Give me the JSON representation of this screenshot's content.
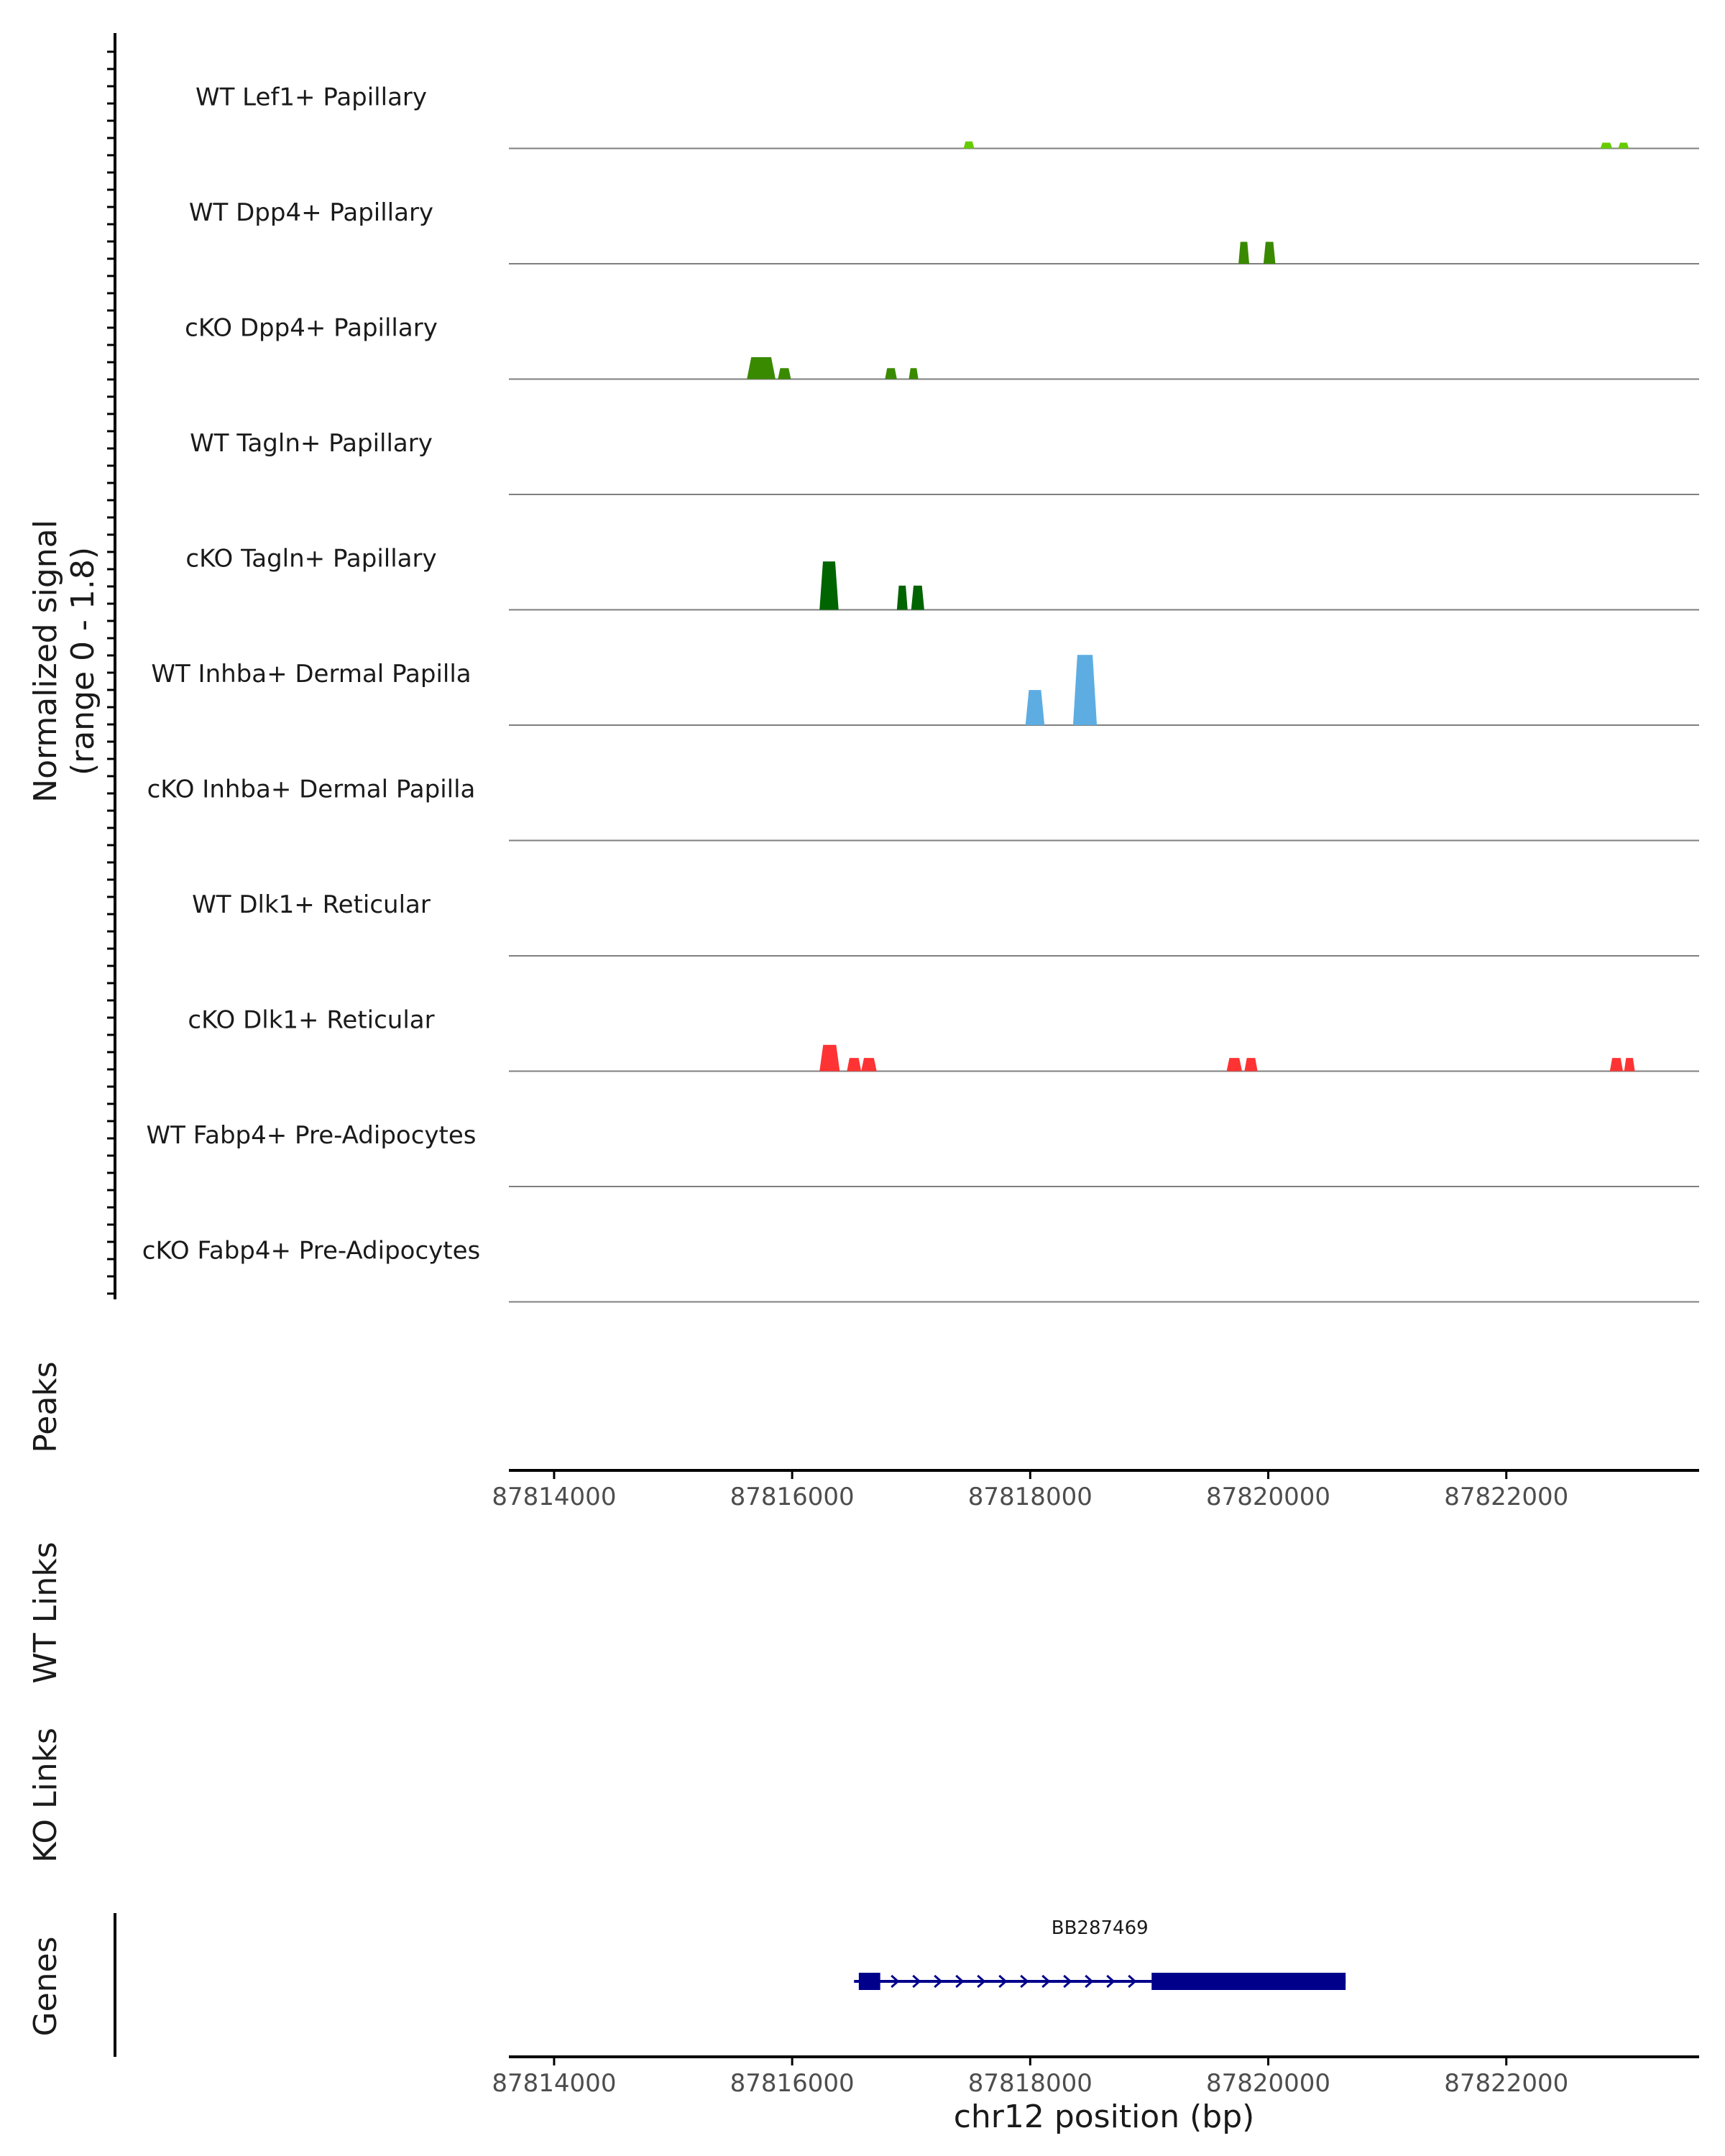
{
  "chart_data": {
    "type": "area",
    "title": "",
    "xlabel": "chr12 position (bp)",
    "ylabel": "Normalized signal (range 0 - 1.8)",
    "ylabel_lines": [
      "Normalized signal",
      "(range 0 - 1.8)"
    ],
    "signal_range": [
      0,
      1.8
    ],
    "xlim": [
      87813620,
      87823620
    ],
    "x_ticks": [
      87814000,
      87816000,
      87818000,
      87820000,
      87822000
    ],
    "x_tick_labels": [
      "87814000",
      "87816000",
      "87818000",
      "87820000",
      "87822000"
    ],
    "tracks": [
      {
        "name": "WT Lef1+ Papillary",
        "color": "#66cc00",
        "peaks": [
          [
            87817440,
            87817530,
            0.16
          ],
          [
            87822790,
            87822890,
            0.13
          ],
          [
            87822940,
            87823030,
            0.13
          ]
        ]
      },
      {
        "name": "WT Dpp4+ Papillary",
        "color": "#3a8a00",
        "peaks": [
          [
            87819750,
            87819840,
            0.5
          ],
          [
            87819960,
            87820060,
            0.5
          ]
        ]
      },
      {
        "name": "cKO Dpp4+ Papillary",
        "color": "#3a8a00",
        "peaks": [
          [
            87815620,
            87815860,
            0.5
          ],
          [
            87815880,
            87815990,
            0.25
          ],
          [
            87816780,
            87816880,
            0.25
          ],
          [
            87816980,
            87817060,
            0.25
          ]
        ]
      },
      {
        "name": "WT Tagln+ Papillary",
        "color": "#2e8b00",
        "peaks": []
      },
      {
        "name": "cKO Tagln+ Papillary",
        "color": "#006400",
        "peaks": [
          [
            87816230,
            87816390,
            1.1
          ],
          [
            87816880,
            87816970,
            0.55
          ],
          [
            87817000,
            87817110,
            0.55
          ]
        ]
      },
      {
        "name": "WT Inhba+ Dermal Papilla",
        "color": "#5dade2",
        "peaks": [
          [
            87817960,
            87818120,
            0.8
          ],
          [
            87818360,
            87818560,
            1.6
          ]
        ]
      },
      {
        "name": "cKO Inhba+ Dermal Papilla",
        "color": "#5dade2",
        "peaks": []
      },
      {
        "name": "WT Dlk1+ Reticular",
        "color": "#ff3333",
        "peaks": []
      },
      {
        "name": "cKO Dlk1+ Reticular",
        "color": "#ff3333",
        "peaks": [
          [
            87816230,
            87816400,
            0.6
          ],
          [
            87816460,
            87816580,
            0.3
          ],
          [
            87816580,
            87816710,
            0.3
          ],
          [
            87819650,
            87819780,
            0.3
          ],
          [
            87819800,
            87819910,
            0.3
          ],
          [
            87822870,
            87822980,
            0.3
          ],
          [
            87822990,
            87823080,
            0.3
          ]
        ]
      },
      {
        "name": "WT Fabp4+ Pre-Adipocytes",
        "color": "#ff3333",
        "peaks": []
      },
      {
        "name": "cKO Fabp4+ Pre-Adipocytes",
        "color": "#ff3333",
        "peaks": []
      }
    ],
    "side_panels": [
      "Peaks",
      "WT Links",
      "KO Links",
      "Genes"
    ],
    "gene": {
      "name": "BB287469",
      "start": 87816520,
      "end": 87820650,
      "strand": "+",
      "exons": [
        [
          87816560,
          87816740
        ],
        [
          87819020,
          87820650
        ]
      ],
      "color": "#00008b"
    }
  }
}
